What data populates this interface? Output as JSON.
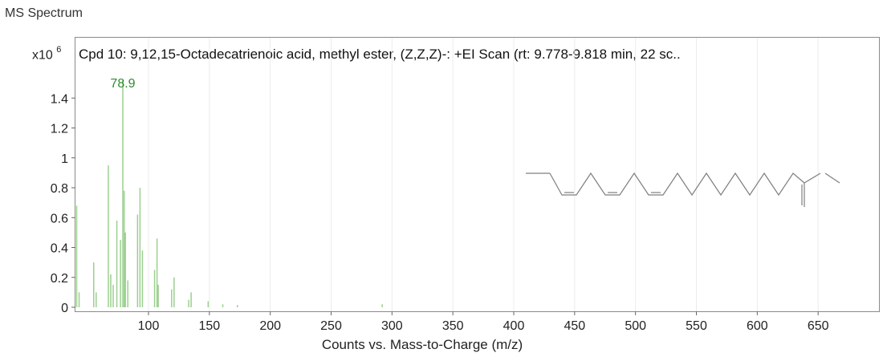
{
  "window": {
    "title": "MS Spectrum"
  },
  "chart_data": {
    "type": "bar",
    "title": "Cpd 10: 9,12,15-Octadecatrienoic acid, methyl ester, (Z,Z,Z)-: +EI Scan (rt: 9.778-9.818 min, 22 sc..",
    "xlabel": "Counts vs. Mass-to-Charge (m/z)",
    "ylabel_multiplier": "x10",
    "ylabel_exponent": "6",
    "xlim": [
      40,
      700
    ],
    "ylim": [
      0,
      1.6
    ],
    "x_ticks": [
      100,
      150,
      200,
      250,
      300,
      350,
      400,
      450,
      500,
      550,
      600,
      650
    ],
    "y_ticks": [
      0,
      0.2,
      0.4,
      0.6,
      0.8,
      1,
      1.2,
      1.4
    ],
    "y_tick_labels": [
      "0",
      "0.2",
      "0.4",
      "0.6",
      "0.8",
      "1",
      "1.2",
      "1.4"
    ],
    "grid": "vertical",
    "bar_color": "#9ccf8f",
    "peak_label_color": "#2e8b2e",
    "peak_annotation": {
      "x": 78.9,
      "label": "78.9"
    },
    "series": [
      {
        "x": [
          41,
          43,
          55,
          57,
          67,
          69,
          71,
          74,
          77,
          78.9,
          80,
          81,
          83,
          91,
          93,
          95,
          105,
          107,
          108,
          119,
          121,
          133,
          135,
          149,
          161,
          173,
          292
        ],
        "values": [
          0.68,
          0.1,
          0.3,
          0.1,
          0.95,
          0.22,
          0.15,
          0.58,
          0.45,
          1.52,
          0.78,
          0.5,
          0.18,
          0.62,
          0.8,
          0.38,
          0.25,
          0.46,
          0.15,
          0.12,
          0.2,
          0.05,
          0.1,
          0.04,
          0.02,
          0.015,
          0.02
        ]
      }
    ]
  }
}
